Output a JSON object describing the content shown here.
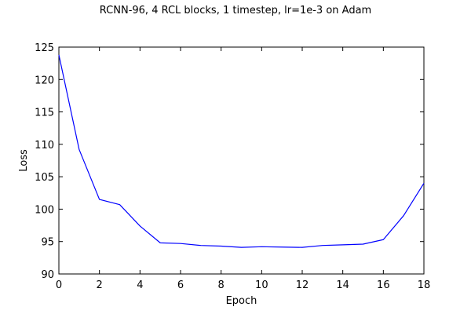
{
  "chart_data": {
    "type": "line",
    "title": "RCNN-96, 4 RCL blocks, 1 timestep, lr=1e-3 on Adam",
    "xlabel": "Epoch",
    "ylabel": "Loss",
    "xlim": [
      0,
      18
    ],
    "ylim": [
      90,
      125
    ],
    "xticks": [
      0,
      2,
      4,
      6,
      8,
      10,
      12,
      14,
      16,
      18
    ],
    "yticks": [
      90,
      95,
      100,
      105,
      110,
      115,
      120,
      125
    ],
    "grid": false,
    "series": [
      {
        "color": "#0000ff",
        "x": [
          0,
          1,
          2,
          3,
          4,
          5,
          6,
          7,
          8,
          9,
          10,
          11,
          12,
          13,
          14,
          15,
          16,
          17,
          18
        ],
        "y": [
          123.8,
          109.2,
          101.5,
          100.7,
          97.4,
          94.8,
          94.7,
          94.4,
          94.3,
          94.1,
          94.2,
          94.15,
          94.1,
          94.4,
          94.5,
          94.6,
          95.3,
          99.0,
          104.0
        ]
      }
    ]
  }
}
